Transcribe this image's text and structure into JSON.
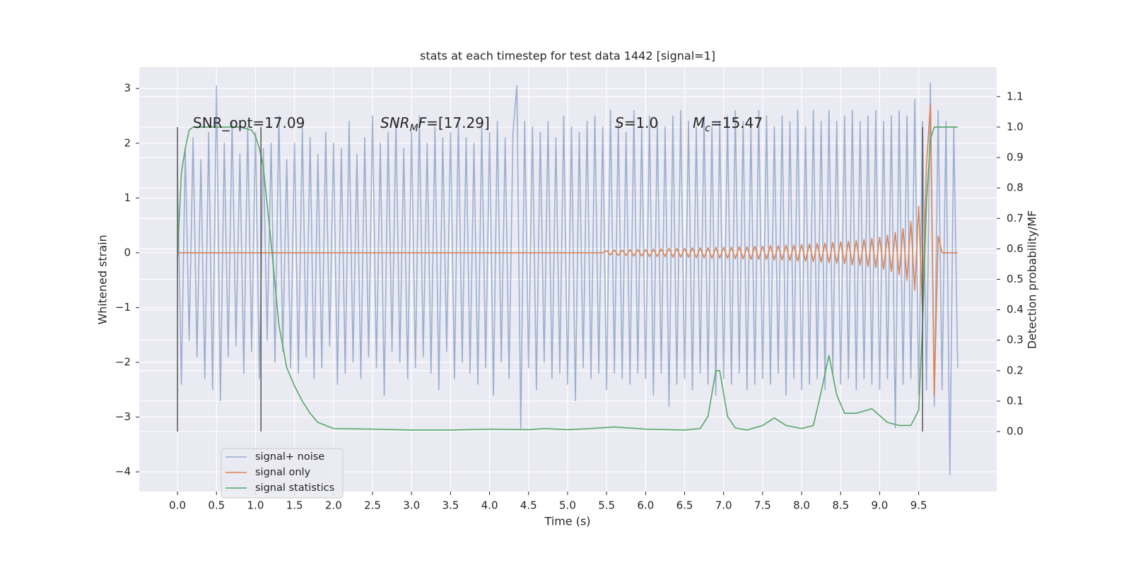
{
  "chart_data": {
    "type": "line",
    "title": "stats at each timestep for test data 1442 [signal=1]",
    "xlabel": "Time (s)",
    "ylabel": "Whitened strain",
    "y2label": "Detection probability/MF",
    "xlim": [
      -0.49,
      10.5
    ],
    "ylim": [
      -4.36,
      3.39
    ],
    "y2lim": [
      -0.197,
      1.197
    ],
    "xticks": [
      {
        "value": 0,
        "label": "0.0"
      },
      {
        "value": 0.5,
        "label": "0.5"
      },
      {
        "value": 1,
        "label": "1.0"
      },
      {
        "value": 1.5,
        "label": "1.5"
      },
      {
        "value": 2,
        "label": "2.0"
      },
      {
        "value": 2.5,
        "label": "2.5"
      },
      {
        "value": 3,
        "label": "3.0"
      },
      {
        "value": 3.5,
        "label": "3.5"
      },
      {
        "value": 4,
        "label": "4.0"
      },
      {
        "value": 4.5,
        "label": "4.5"
      },
      {
        "value": 5,
        "label": "5.0"
      },
      {
        "value": 5.5,
        "label": "5.5"
      },
      {
        "value": 6,
        "label": "6.0"
      },
      {
        "value": 6.5,
        "label": "6.5"
      },
      {
        "value": 7,
        "label": "7.0"
      },
      {
        "value": 7.5,
        "label": "7.5"
      },
      {
        "value": 8,
        "label": "8.0"
      },
      {
        "value": 8.5,
        "label": "8.5"
      },
      {
        "value": 9,
        "label": "9.0"
      },
      {
        "value": 9.5,
        "label": "9.5"
      }
    ],
    "yticks": [
      {
        "value": -4,
        "label": "−4"
      },
      {
        "value": -3,
        "label": "−3"
      },
      {
        "value": -2,
        "label": "−2"
      },
      {
        "value": -1,
        "label": "−1"
      },
      0,
      1,
      2,
      3
    ],
    "y2ticks": [
      {
        "value": 0,
        "label": "0.0"
      },
      {
        "value": 0.1,
        "label": "0.1"
      },
      {
        "value": 0.2,
        "label": "0.2"
      },
      {
        "value": 0.3,
        "label": "0.3"
      },
      {
        "value": 0.4,
        "label": "0.4"
      },
      {
        "value": 0.5,
        "label": "0.5"
      },
      {
        "value": 0.6,
        "label": "0.6"
      },
      {
        "value": 0.7,
        "label": "0.7"
      },
      {
        "value": 0.8,
        "label": "0.8"
      },
      {
        "value": 0.9,
        "label": "0.9"
      },
      {
        "value": 1,
        "label": "1.0"
      },
      {
        "value": 1.1,
        "label": "1.1"
      }
    ],
    "grid": true,
    "legend": "lower left",
    "x": [
      0,
      0.05,
      0.1,
      0.15,
      0.2,
      0.25,
      0.3,
      0.35,
      0.4,
      0.45,
      0.5,
      0.55,
      0.6,
      0.65,
      0.7,
      0.75,
      0.8,
      0.85,
      0.9,
      0.95,
      1,
      1.05,
      1.1,
      1.15,
      1.2,
      1.25,
      1.3,
      1.35,
      1.4,
      1.45,
      1.5,
      1.55,
      1.6,
      1.65,
      1.7,
      1.75,
      1.8,
      1.85,
      1.9,
      1.95,
      2,
      2.05,
      2.1,
      2.15,
      2.2,
      2.25,
      2.3,
      2.35,
      2.4,
      2.45,
      2.5,
      2.55,
      2.6,
      2.65,
      2.7,
      2.75,
      2.8,
      2.85,
      2.9,
      2.95,
      3,
      3.05,
      3.1,
      3.15,
      3.2,
      3.25,
      3.3,
      3.35,
      3.4,
      3.45,
      3.5,
      3.55,
      3.6,
      3.65,
      3.7,
      3.75,
      3.8,
      3.85,
      3.9,
      3.95,
      4,
      4.05,
      4.1,
      4.15,
      4.2,
      4.25,
      4.3,
      4.35,
      4.4,
      4.45,
      4.5,
      4.55,
      4.6,
      4.65,
      4.7,
      4.75,
      4.8,
      4.85,
      4.9,
      4.95,
      5,
      5.05,
      5.1,
      5.15,
      5.2,
      5.25,
      5.3,
      5.35,
      5.4,
      5.45,
      5.5,
      5.55,
      5.6,
      5.65,
      5.7,
      5.75,
      5.8,
      5.85,
      5.9,
      5.95,
      6,
      6.05,
      6.1,
      6.15,
      6.2,
      6.25,
      6.3,
      6.35,
      6.4,
      6.45,
      6.5,
      6.55,
      6.6,
      6.65,
      6.7,
      6.75,
      6.8,
      6.85,
      6.9,
      6.95,
      7,
      7.05,
      7.1,
      7.15,
      7.2,
      7.25,
      7.3,
      7.35,
      7.4,
      7.45,
      7.5,
      7.55,
      7.6,
      7.65,
      7.7,
      7.75,
      7.8,
      7.85,
      7.9,
      7.95,
      8,
      8.05,
      8.1,
      8.15,
      8.2,
      8.25,
      8.3,
      8.35,
      8.4,
      8.45,
      8.5,
      8.55,
      8.6,
      8.65,
      8.7,
      8.75,
      8.8,
      8.85,
      8.9,
      8.95,
      9,
      9.05,
      9.1,
      9.15,
      9.2,
      9.25,
      9.3,
      9.35,
      9.4,
      9.45,
      9.5,
      9.55,
      9.6,
      9.65,
      9.7,
      9.75,
      9.8,
      9.85,
      9.9,
      9.95,
      10
    ],
    "series": [
      {
        "name": "signal+ noise",
        "color": "#4c72b0",
        "alpha": 0.5,
        "values": [
          1.5,
          -2.4,
          1.9,
          -1.6,
          2.1,
          -1.9,
          1.7,
          -2.3,
          2.2,
          -2.5,
          3.05,
          -2.7,
          2.0,
          -1.9,
          2.4,
          -1.7,
          1.8,
          -2.2,
          2.3,
          -1.8,
          2.2,
          -2.3,
          1.9,
          -1.6,
          2.0,
          -2.0,
          2.5,
          -1.8,
          1.7,
          -2.1,
          2.0,
          -2.2,
          2.3,
          -1.9,
          2.1,
          -2.3,
          1.8,
          -2.1,
          2.2,
          -1.7,
          2.0,
          -2.4,
          1.9,
          -2.2,
          2.4,
          -2.0,
          1.8,
          -2.3,
          2.1,
          -1.9,
          2.5,
          -2.1,
          2.0,
          -2.6,
          2.2,
          -1.8,
          2.4,
          -2.0,
          1.9,
          -2.3,
          2.2,
          -2.1,
          2.5,
          -1.9,
          2.0,
          -2.2,
          2.3,
          -2.5,
          2.1,
          -1.8,
          2.2,
          -2.3,
          2.4,
          -2.0,
          2.1,
          -2.2,
          2.0,
          -2.4,
          2.3,
          -2.1,
          2.2,
          -2.6,
          2.4,
          -2.0,
          2.1,
          -2.3,
          2.2,
          3.05,
          -3.2,
          2.4,
          -2.1,
          2.3,
          -2.5,
          2.2,
          -2.0,
          2.4,
          -2.3,
          2.1,
          -2.2,
          2.5,
          -2.4,
          2.3,
          -2.7,
          2.2,
          -2.1,
          2.4,
          -2.3,
          2.5,
          -2.2,
          2.3,
          -2.5,
          2.6,
          -2.2,
          2.4,
          -2.3,
          2.2,
          -2.4,
          2.6,
          -2.2,
          2.3,
          -2.3,
          2.5,
          -2.6,
          2.4,
          -2.2,
          2.3,
          -2.8,
          2.5,
          -2.4,
          2.6,
          -2.3,
          2.4,
          -2.5,
          2.3,
          -2.2,
          2.5,
          -2.4,
          2.3,
          -2.6,
          2.4,
          -2.3,
          2.5,
          -2.4,
          2.6,
          -2.2,
          2.4,
          -2.5,
          2.3,
          -2.4,
          2.6,
          -2.3,
          2.5,
          -2.4,
          2.3,
          -2.2,
          2.5,
          -2.6,
          2.4,
          -2.3,
          2.6,
          -2.5,
          2.3,
          -2.4,
          2.6,
          -2.3,
          2.4,
          -2.5,
          2.6,
          -2.2,
          2.4,
          -2.4,
          2.5,
          -2.3,
          2.6,
          -2.5,
          2.4,
          -2.3,
          2.5,
          -2.4,
          2.6,
          -2.5,
          2.4,
          -2.3,
          2.5,
          -3.2,
          2.6,
          -2.4,
          2.5,
          -2.3,
          2.8,
          -2.6,
          2.4,
          -2.5,
          3.1,
          -2.8,
          2.6,
          -2.5,
          2.4,
          -4.05,
          2.3,
          -2.1
        ]
      },
      {
        "name": "signal only",
        "color": "#dd8452",
        "values": [
          0,
          0,
          0,
          0,
          0,
          0,
          0,
          0,
          0,
          0,
          0,
          0,
          0,
          0,
          0,
          0,
          0,
          0,
          0,
          0,
          0,
          0,
          0,
          0,
          0,
          0,
          0,
          0,
          0,
          0,
          0,
          0,
          0,
          0,
          0,
          0,
          0,
          0,
          0,
          0,
          0,
          0,
          0,
          0,
          0,
          0,
          0,
          0,
          0,
          0,
          0,
          0,
          0,
          0,
          0,
          0,
          0,
          0,
          0,
          0,
          0,
          0,
          0,
          0,
          0,
          0,
          0,
          0,
          0,
          0,
          0,
          0,
          0,
          0,
          0,
          0,
          0,
          0,
          0,
          0,
          0,
          0,
          0,
          0,
          0,
          0,
          0,
          0,
          0,
          0,
          0,
          0,
          0,
          0,
          0,
          0,
          0,
          0,
          0,
          0,
          0,
          0,
          0,
          0,
          0,
          0,
          0,
          0,
          0,
          0,
          0.04,
          -0.04,
          0.05,
          -0.05,
          0.05,
          -0.05,
          0.06,
          -0.06,
          0.06,
          -0.06,
          0.06,
          -0.07,
          0.07,
          -0.07,
          0.07,
          -0.07,
          0.08,
          -0.08,
          0.08,
          -0.08,
          0.08,
          -0.08,
          0.09,
          -0.09,
          0.09,
          -0.09,
          0.09,
          -0.1,
          0.1,
          -0.1,
          0.1,
          -0.1,
          0.1,
          -0.11,
          0.11,
          -0.11,
          0.11,
          -0.12,
          0.12,
          -0.12,
          0.12,
          -0.12,
          0.13,
          -0.13,
          0.13,
          -0.13,
          0.14,
          -0.14,
          0.14,
          -0.15,
          0.15,
          -0.15,
          0.16,
          -0.16,
          0.17,
          -0.17,
          0.18,
          -0.18,
          0.19,
          -0.19,
          0.2,
          -0.2,
          0.21,
          -0.22,
          0.22,
          -0.23,
          0.24,
          -0.25,
          0.26,
          -0.27,
          0.28,
          -0.3,
          0.32,
          -0.34,
          0.37,
          -0.4,
          0.44,
          -0.5,
          0.57,
          -0.68,
          0.85,
          -1.1,
          1.6,
          2.7,
          -2.6,
          0.3,
          0,
          0,
          0,
          0,
          0
        ]
      },
      {
        "name": "signal statistics",
        "color": "#55a868",
        "axis": "y2",
        "x": [
          0,
          0.05,
          0.1,
          0.15,
          0.2,
          0.3,
          0.5,
          0.8,
          0.95,
          1.0,
          1.05,
          1.1,
          1.2,
          1.3,
          1.4,
          1.5,
          1.6,
          1.7,
          1.8,
          2.0,
          2.5,
          3.0,
          3.5,
          4.0,
          4.5,
          4.7,
          5.0,
          5.3,
          5.6,
          6.0,
          6.5,
          6.7,
          6.8,
          6.9,
          6.95,
          7.05,
          7.15,
          7.3,
          7.5,
          7.65,
          7.8,
          8.0,
          8.15,
          8.25,
          8.35,
          8.45,
          8.55,
          8.7,
          8.9,
          9.1,
          9.25,
          9.4,
          9.5,
          9.55,
          9.6,
          9.65,
          9.7,
          9.8,
          10.0
        ],
        "values": [
          0.57,
          0.85,
          0.93,
          0.99,
          1.0,
          1.0,
          1.0,
          1.0,
          0.99,
          0.97,
          0.93,
          0.87,
          0.62,
          0.35,
          0.21,
          0.15,
          0.1,
          0.06,
          0.03,
          0.01,
          0.008,
          0.005,
          0.005,
          0.008,
          0.006,
          0.01,
          0.006,
          0.01,
          0.015,
          0.008,
          0.005,
          0.01,
          0.05,
          0.2,
          0.2,
          0.05,
          0.012,
          0.005,
          0.02,
          0.045,
          0.02,
          0.01,
          0.02,
          0.13,
          0.25,
          0.12,
          0.06,
          0.06,
          0.075,
          0.03,
          0.02,
          0.02,
          0.07,
          0.35,
          0.75,
          0.96,
          1.0,
          1.0,
          1.0
        ]
      }
    ],
    "vlines": [
      0,
      1.07,
      9.55
    ],
    "vline_range": [
      0,
      1
    ],
    "vline_color": "#555555",
    "annotations": [
      {
        "parts": [
          {
            "text": "SNR_opt=17.09"
          }
        ]
      },
      {
        "parts": [
          {
            "text": "SNR",
            "style": "italic"
          },
          {
            "text": "M",
            "style": "italic-sub"
          },
          {
            "text": "F",
            "style": "italic"
          },
          {
            "text": "=[17.29]"
          }
        ]
      },
      {
        "parts": [
          {
            "text": "S",
            "style": "italic"
          },
          {
            "text": "=1.0"
          }
        ]
      },
      {
        "parts": [
          {
            "text": "M",
            "style": "italic"
          },
          {
            "text": "c",
            "style": "italic-sub"
          },
          {
            "text": "=15.47"
          }
        ]
      }
    ]
  }
}
